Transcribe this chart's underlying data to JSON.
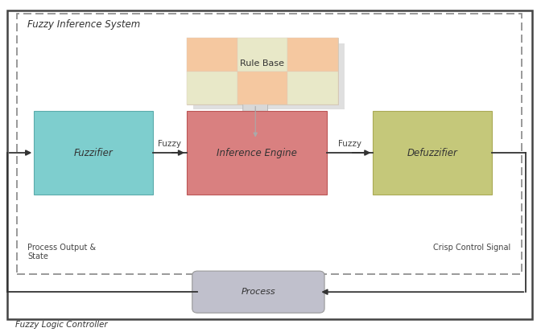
{
  "bg_color": "#ffffff",
  "outer_border_color": "#444444",
  "dashed_border_color": "#888888",
  "fuzzifier_color": "#7ecece",
  "fuzzifier_edge": "#5aabab",
  "inference_color": "#d98080",
  "inference_edge": "#bb5555",
  "defuzzifier_color": "#c5c87a",
  "defuzzifier_edge": "#aaaa55",
  "rulebase_color1": "#f5c8a0",
  "rulebase_color2": "#e8e8c8",
  "rulebase_shadow_color": "#d8d8d8",
  "process_color": "#c0c0cc",
  "process_edge": "#999999",
  "connector_color": "#aaaaaa",
  "arrow_color": "#333333",
  "label_color": "#444444",
  "title_color": "#333333",
  "fuzzy_inference_label": "Fuzzy Inference System",
  "fuzzy_logic_label": "Fuzzy Logic Controller",
  "process_output_label": "Process Output &\nState",
  "crisp_signal_label": "Crisp Control Signal",
  "fuzzifier_label": "Fuzzifier",
  "inference_label": "Inference Engine",
  "defuzzifier_label": "Defuzzifier",
  "rulebase_label": "Rule Base",
  "process_label": "Process",
  "fuzzy_label1": "Fuzzy",
  "fuzzy_label2": "Fuzzy",
  "xlim": [
    0,
    10
  ],
  "ylim": [
    0,
    7.5
  ],
  "figw": 6.72,
  "figh": 4.13
}
